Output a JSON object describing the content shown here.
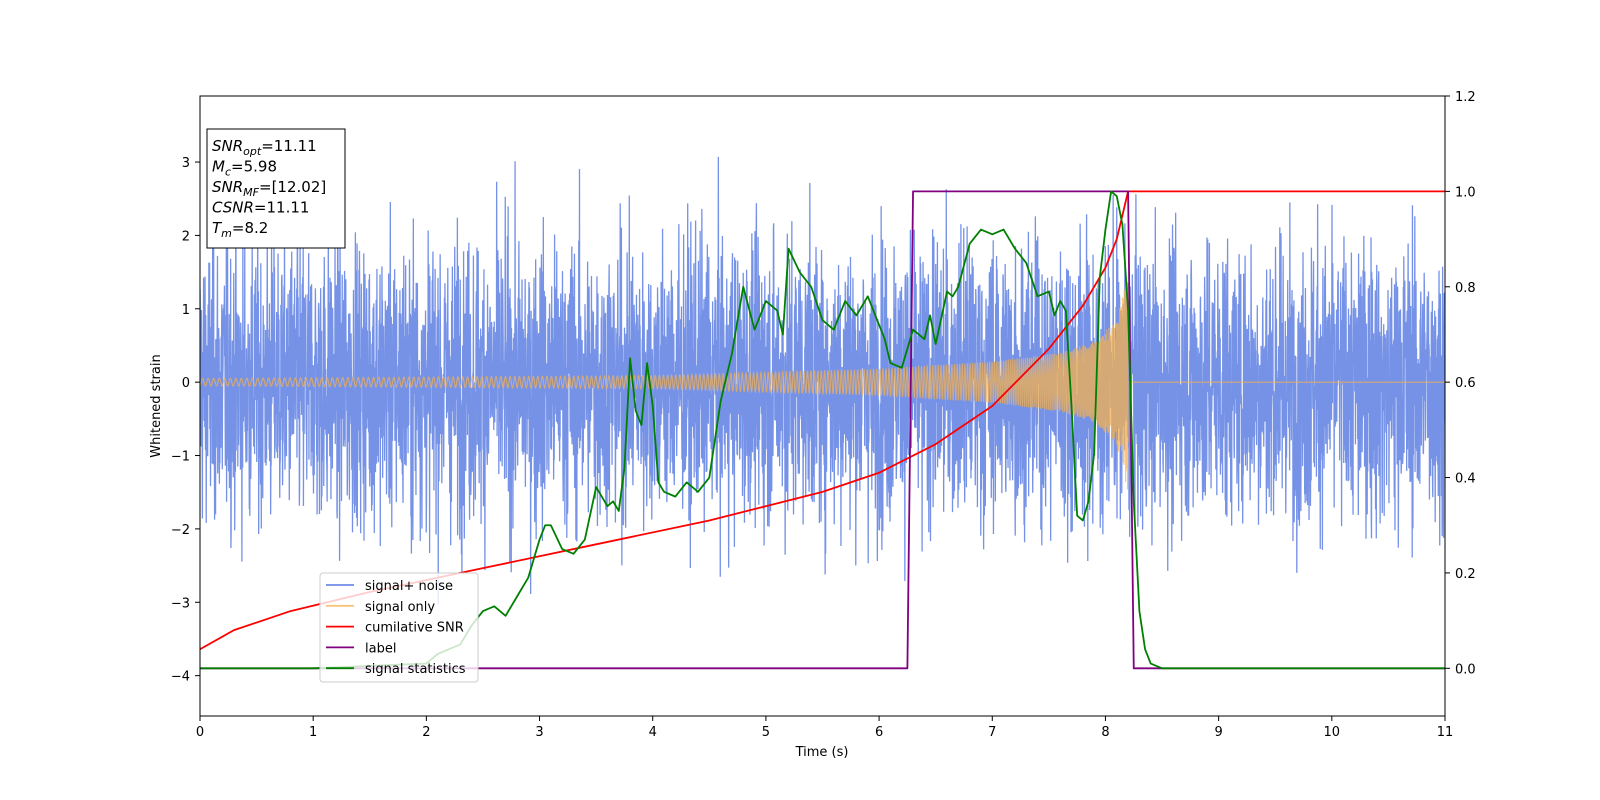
{
  "chart_data": {
    "type": "line",
    "xlabel": "Time (s)",
    "ylabel": "Whitened strain",
    "xlim": [
      0,
      11
    ],
    "ylim": [
      -4.55,
      3.9
    ],
    "y2lim": [
      -0.1,
      1.2
    ],
    "x_ticks": [
      0,
      1,
      2,
      3,
      4,
      5,
      6,
      7,
      8,
      9,
      10,
      11
    ],
    "y_ticks": [
      -4,
      -3,
      -2,
      -1,
      0,
      1,
      2,
      3
    ],
    "y2_ticks": [
      "0.0",
      "0.2",
      "0.4",
      "0.6",
      "0.8",
      "1.0",
      "1.2"
    ],
    "grid": false,
    "legend_position": "lower-left",
    "colors": {
      "noise": "#6e8ce6",
      "signal": "#f5b04f",
      "snr": "#ff0000",
      "label": "#800080",
      "stats": "#008000"
    },
    "annotation": {
      "lines": [
        {
          "main": "SNR",
          "sub": "opt",
          "rest": "=11.11"
        },
        {
          "main": "M",
          "sub": "c",
          "rest": "=5.98"
        },
        {
          "main": "SNR",
          "sub": "MF",
          "rest": "=[12.02]"
        },
        {
          "main": "CSNR",
          "sub": "",
          "rest": "=11.11"
        },
        {
          "main": "T",
          "sub": "m",
          "rest": "=8.2"
        }
      ]
    },
    "series": [
      {
        "name": "signal+ noise",
        "axis": "left",
        "kind": "noise",
        "sigma": 1.0,
        "x_range": [
          0,
          11
        ]
      },
      {
        "name": "signal only",
        "axis": "left",
        "kind": "chirp",
        "x_range": [
          0,
          8.2
        ],
        "envelope": [
          [
            0,
            0.05
          ],
          [
            4,
            0.09
          ],
          [
            6,
            0.18
          ],
          [
            7,
            0.28
          ],
          [
            7.6,
            0.4
          ],
          [
            7.9,
            0.55
          ],
          [
            8.1,
            0.85
          ],
          [
            8.2,
            1.5
          ]
        ]
      },
      {
        "name": "cumilative SNR",
        "axis": "right",
        "kind": "line",
        "x": [
          0,
          0.3,
          0.8,
          1.5,
          2.5,
          3.5,
          4.5,
          5.5,
          6.0,
          6.5,
          7.0,
          7.5,
          7.8,
          8.0,
          8.1,
          8.2,
          11.0
        ],
        "y": [
          0.04,
          0.08,
          0.12,
          0.16,
          0.21,
          0.26,
          0.31,
          0.37,
          0.41,
          0.47,
          0.55,
          0.67,
          0.76,
          0.84,
          0.9,
          1.0,
          1.0
        ]
      },
      {
        "name": "label",
        "axis": "right",
        "kind": "line",
        "x": [
          0,
          6.25,
          6.3,
          8.2,
          8.25,
          11.0
        ],
        "y": [
          0.0,
          0.0,
          1.0,
          1.0,
          0.0,
          0.0
        ]
      },
      {
        "name": "signal statistics",
        "axis": "right",
        "kind": "line",
        "x": [
          0,
          1.0,
          2.0,
          2.1,
          2.2,
          2.3,
          2.4,
          2.5,
          2.6,
          2.7,
          2.8,
          2.9,
          3.0,
          3.05,
          3.1,
          3.2,
          3.3,
          3.4,
          3.5,
          3.6,
          3.65,
          3.7,
          3.75,
          3.8,
          3.85,
          3.9,
          3.95,
          4.0,
          4.05,
          4.1,
          4.2,
          4.3,
          4.4,
          4.5,
          4.6,
          4.7,
          4.8,
          4.9,
          5.0,
          5.1,
          5.15,
          5.2,
          5.3,
          5.4,
          5.5,
          5.6,
          5.7,
          5.8,
          5.9,
          6.0,
          6.05,
          6.1,
          6.2,
          6.3,
          6.4,
          6.45,
          6.5,
          6.6,
          6.65,
          6.7,
          6.8,
          6.9,
          7.0,
          7.1,
          7.2,
          7.3,
          7.4,
          7.5,
          7.55,
          7.6,
          7.65,
          7.7,
          7.75,
          7.8,
          7.85,
          7.9,
          7.95,
          8.0,
          8.05,
          8.1,
          8.15,
          8.2,
          8.25,
          8.3,
          8.35,
          8.4,
          8.5,
          11.0
        ],
        "y": [
          0.0,
          0.0,
          0.01,
          0.03,
          0.04,
          0.05,
          0.09,
          0.12,
          0.13,
          0.11,
          0.15,
          0.19,
          0.27,
          0.3,
          0.3,
          0.25,
          0.24,
          0.27,
          0.38,
          0.34,
          0.35,
          0.33,
          0.42,
          0.65,
          0.54,
          0.51,
          0.64,
          0.55,
          0.39,
          0.37,
          0.36,
          0.39,
          0.37,
          0.4,
          0.56,
          0.66,
          0.8,
          0.71,
          0.77,
          0.75,
          0.7,
          0.88,
          0.83,
          0.8,
          0.73,
          0.71,
          0.77,
          0.74,
          0.78,
          0.72,
          0.69,
          0.64,
          0.63,
          0.71,
          0.69,
          0.74,
          0.68,
          0.79,
          0.78,
          0.8,
          0.89,
          0.92,
          0.91,
          0.92,
          0.88,
          0.85,
          0.78,
          0.79,
          0.74,
          0.77,
          0.75,
          0.55,
          0.32,
          0.31,
          0.35,
          0.45,
          0.82,
          0.92,
          1.0,
          0.99,
          0.93,
          0.75,
          0.35,
          0.12,
          0.04,
          0.01,
          0.0,
          0.0
        ]
      }
    ]
  }
}
